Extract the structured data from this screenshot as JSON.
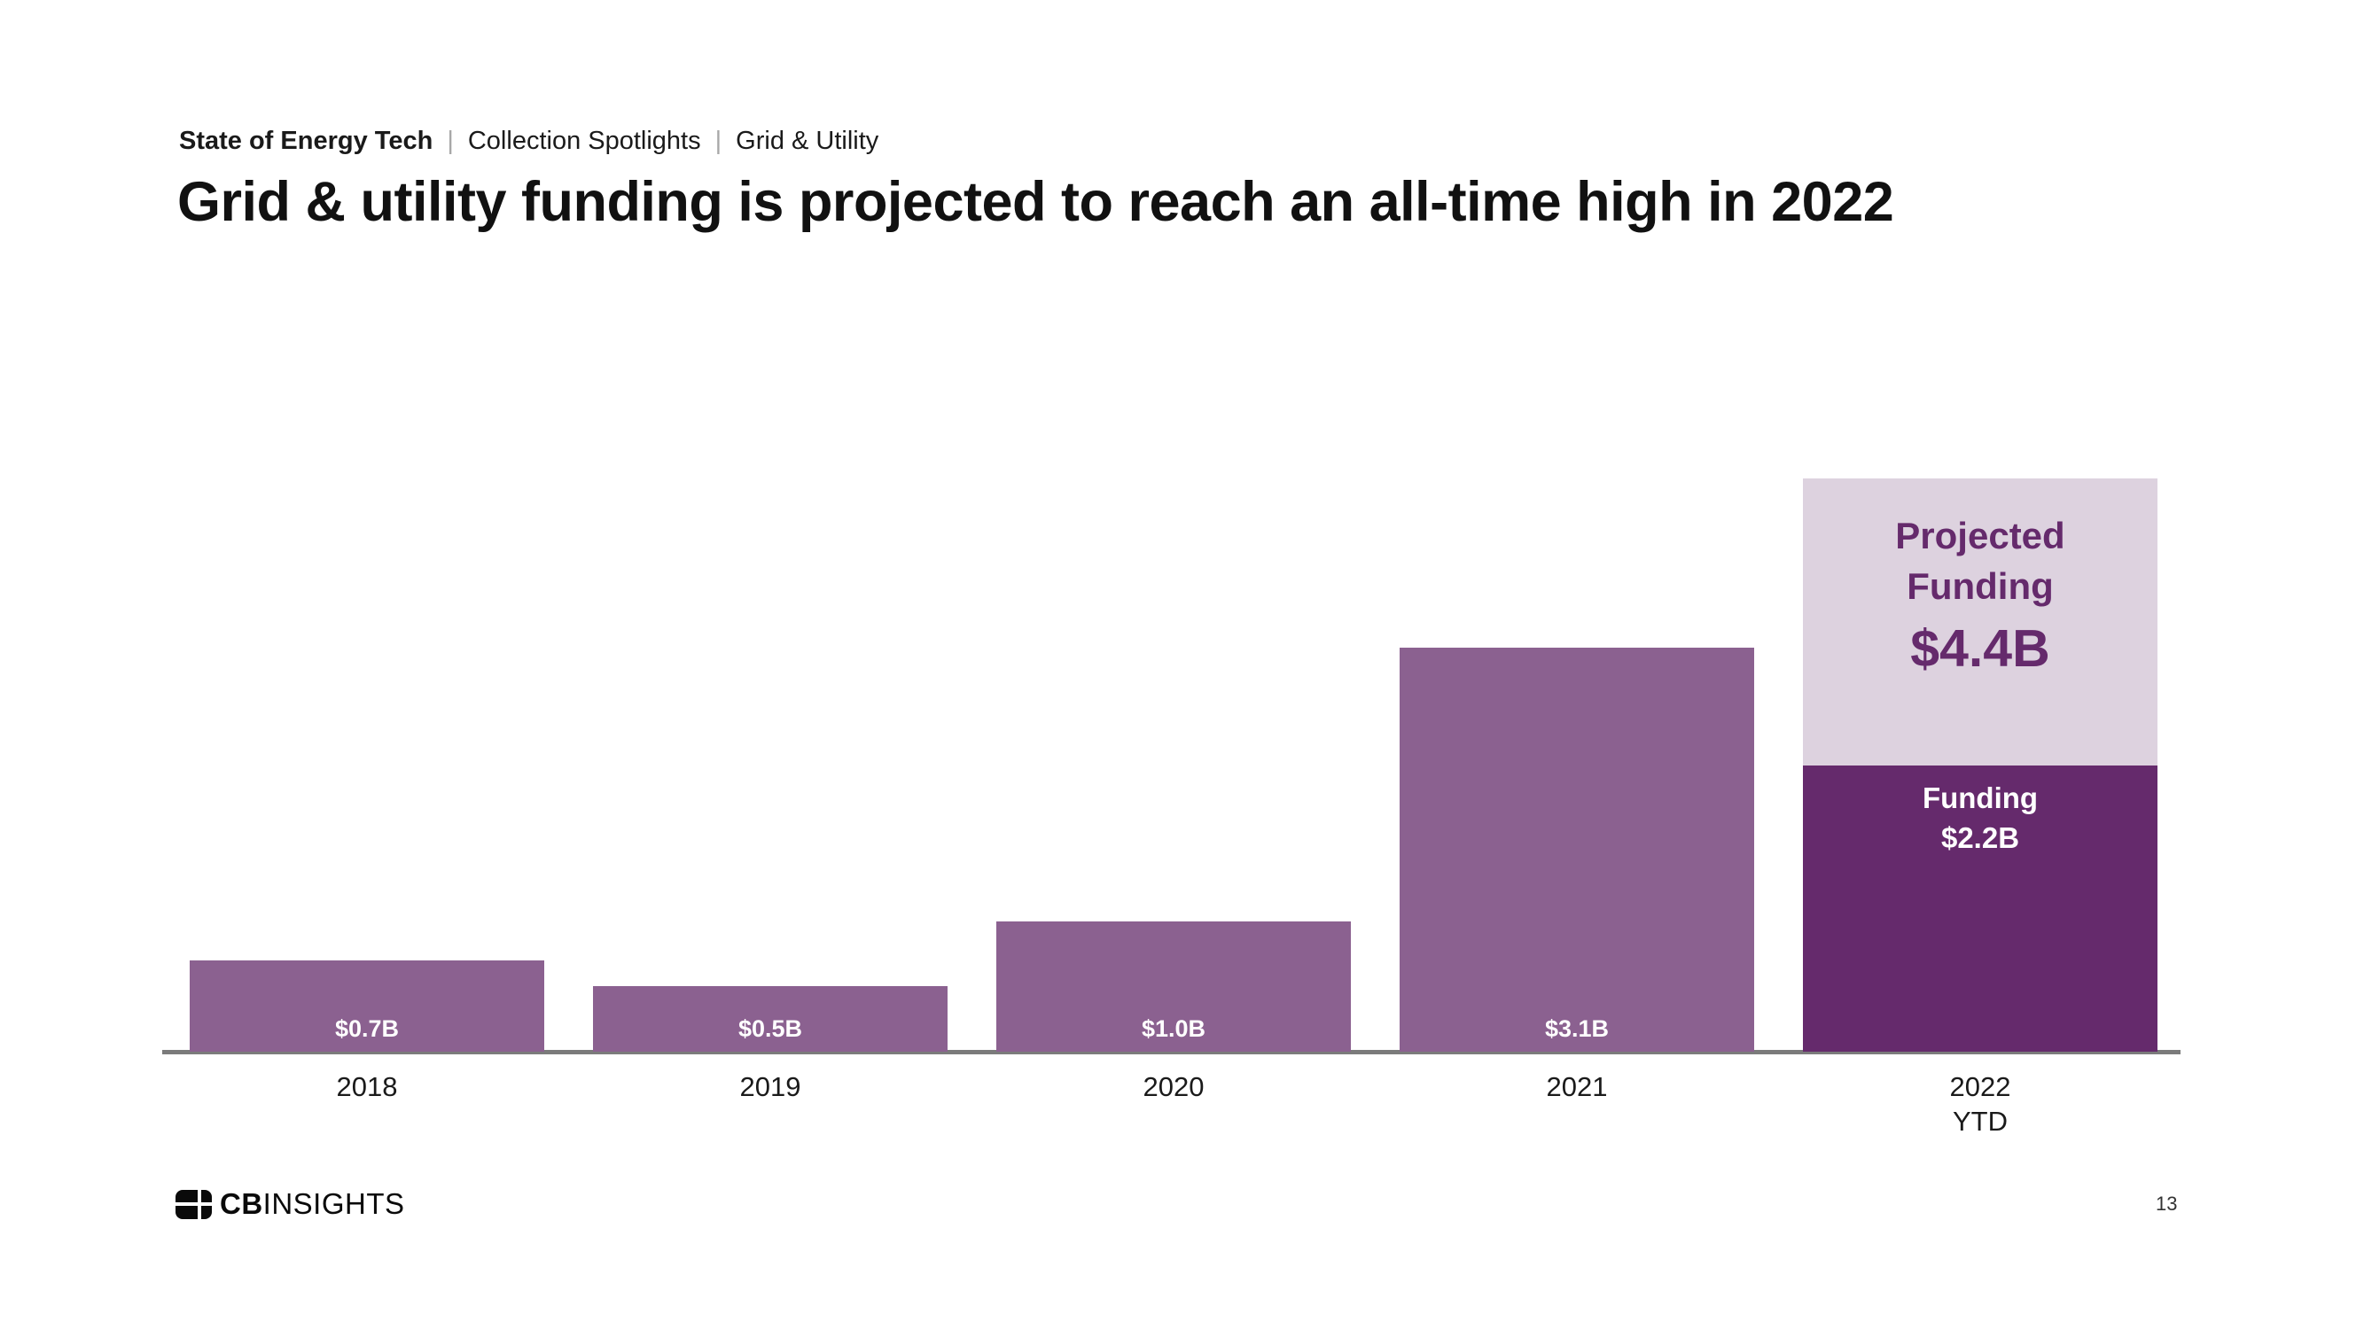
{
  "breadcrumb": {
    "separator": "|",
    "items": [
      "State of Energy Tech",
      "Collection Spotlights",
      "Grid & Utility"
    ]
  },
  "title": "Grid & utility funding is projected to reach an all-time high in 2022",
  "chart_data": {
    "type": "bar",
    "categories": [
      "2018",
      "2019",
      "2020",
      "2021",
      "2022 YTD"
    ],
    "series": [
      {
        "name": "Funding",
        "values": [
          0.7,
          0.5,
          1.0,
          3.1,
          2.2
        ]
      },
      {
        "name": "Projected Funding",
        "values": [
          null,
          null,
          null,
          null,
          4.4
        ]
      }
    ],
    "value_labels": [
      "$0.7B",
      "$0.5B",
      "$1.0B",
      "$3.1B"
    ],
    "stacked_bar_labels": {
      "projected_title_lines": [
        "Projected",
        "Funding"
      ],
      "projected_value": "$4.4B",
      "funding_title": "Funding",
      "funding_value": "$2.2B"
    },
    "ylim": [
      0,
      4.6
    ],
    "grid": false,
    "legend_position": "none",
    "colors": {
      "funding_actual": "#8B6190",
      "funding_2022": "#652A6C",
      "projected_2022": "#DDD2DF",
      "projected_text": "#652A6C",
      "axis": "#7B7B7B"
    }
  },
  "footer": {
    "logo_bold": "CB",
    "logo_rest": "INSIGHTS",
    "page_number": "13"
  }
}
